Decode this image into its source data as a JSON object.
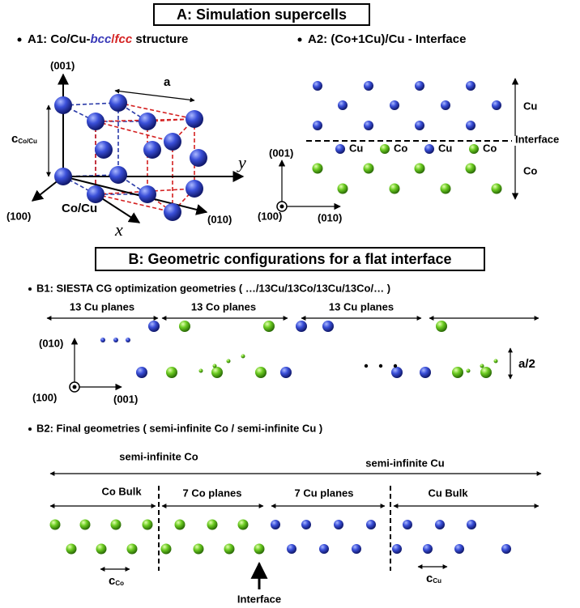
{
  "a": {
    "title": "A:  Simulation supercells",
    "a1_heading": [
      "A1: Co/Cu-",
      "bcc",
      "/",
      "fcc",
      " structure"
    ],
    "a1_labels": {
      "dir001": "(001)",
      "a": "a",
      "c": "c",
      "c_sub": "Co/Cu",
      "y": "y",
      "dir100": "(100)",
      "cocu": "Co/Cu",
      "dir010": "(010)",
      "x": "x"
    },
    "a2_heading": "A2: (Co+1Cu)/Cu - Interface",
    "a2_labels": {
      "cu": "Cu",
      "interface": "Interface",
      "co": "Co",
      "dir001": "(001)",
      "dir100": "(100)",
      "dir010": "(010)"
    },
    "a2_atom_labels": [
      "Cu",
      "Co",
      "Cu",
      "Co"
    ]
  },
  "b": {
    "title": "B: Geometric configurations for a flat interface",
    "b1_heading": "B1: SIESTA CG optimization geometries ( …/13Cu/13Co/13Cu/13Co/… )",
    "b1_planes": [
      "13 Cu planes",
      "13 Co planes",
      "13 Cu planes"
    ],
    "b1_labels": {
      "dir010": "(010)",
      "dir100": "(100)",
      "dir001": "(001)",
      "half_a": "a/2"
    },
    "b2_heading": "B2: Final geometries ( semi-infinite Co / semi-infinite Cu )",
    "b2_semi": [
      "semi-infinite Co",
      "semi-infinite Cu"
    ],
    "b2_regions": [
      "Co Bulk",
      "7 Co planes",
      "7 Cu planes",
      "Cu Bulk"
    ],
    "b2_c_co": [
      "c",
      "Co"
    ],
    "b2_c_cu": [
      "c",
      "Cu"
    ],
    "b2_interface": "Interface"
  }
}
